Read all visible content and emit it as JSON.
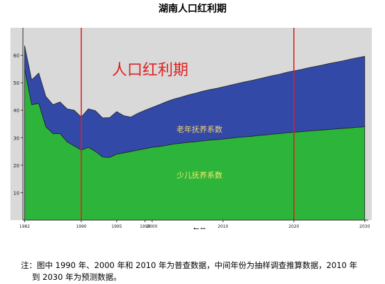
{
  "title": "湖南人口红利期",
  "chart_data": {
    "type": "area",
    "stacked": true,
    "xlabel": "年份",
    "ylabel": "",
    "xlim": [
      1980,
      2031
    ],
    "ylim": [
      0,
      70
    ],
    "yticks": [
      10,
      20,
      30,
      40,
      50,
      60
    ],
    "xtick_labels": [
      {
        "x": 1982,
        "label": "1982"
      },
      {
        "x": 1990,
        "label": "1990"
      },
      {
        "x": 1995,
        "label": "1995"
      },
      {
        "x": 1999,
        "label": "1999"
      },
      {
        "x": 2000,
        "label": "2000"
      },
      {
        "x": 2010,
        "label": "2010"
      },
      {
        "x": 2020,
        "label": "2020"
      },
      {
        "x": 2030,
        "label": "2030"
      }
    ],
    "x": [
      1982,
      1983,
      1984,
      1985,
      1986,
      1987,
      1988,
      1989,
      1990,
      1991,
      1992,
      1993,
      1994,
      1995,
      1996,
      1997,
      1998,
      1999,
      2000,
      2001,
      2002,
      2003,
      2004,
      2005,
      2006,
      2007,
      2008,
      2009,
      2010,
      2011,
      2012,
      2013,
      2014,
      2015,
      2016,
      2017,
      2018,
      2019,
      2020,
      2021,
      2022,
      2023,
      2024,
      2025,
      2026,
      2027,
      2028,
      2029,
      2030
    ],
    "series": [
      {
        "name": "少儿抚养系数",
        "color": "#2db43a",
        "values": [
          55,
          42,
          42.5,
          34,
          31.5,
          31.5,
          28.5,
          27,
          25.5,
          26.5,
          25,
          23,
          22.8,
          24,
          24.5,
          25,
          25.5,
          26,
          26.5,
          26.8,
          27.2,
          27.7,
          28,
          28.3,
          28.5,
          28.8,
          29.1,
          29.3,
          29.5,
          29.8,
          30.1,
          30.3,
          30.5,
          30.8,
          31,
          31.3,
          31.5,
          31.8,
          32,
          32.2,
          32.4,
          32.6,
          32.8,
          33,
          33.2,
          33.4,
          33.6,
          33.8,
          34
        ]
      },
      {
        "name": "老年抚养系数",
        "color": "#3349a8",
        "values": [
          8.5,
          9,
          11,
          11,
          10.5,
          11.5,
          12,
          13,
          12,
          14,
          14.8,
          14.2,
          14.5,
          15.5,
          13.5,
          12.5,
          13.4,
          14,
          14.5,
          15.2,
          15.9,
          16.3,
          16.7,
          17.2,
          17.6,
          18,
          18.3,
          18.6,
          19,
          19.3,
          19.6,
          20,
          20.3,
          20.6,
          21,
          21.3,
          21.6,
          22,
          22.3,
          22.6,
          23,
          23.3,
          23.6,
          24,
          24.3,
          24.6,
          25,
          25.3,
          25.6
        ]
      }
    ],
    "annotations": {
      "dividend": "人口红利期",
      "elderly": "老年抚养系数",
      "child": "少儿抚养系数"
    },
    "reference_lines_x": [
      1990,
      2020
    ],
    "grid": false,
    "legend": "none"
  },
  "note": {
    "line1": "注：图中 1990 年、2000 年和 2010 年为普查数据，中间年份为抽样调查推算数据，2010 年",
    "line2": "到 2030 年为预测数据。"
  },
  "colors": {
    "plot_bg": "#d9d9d9",
    "axis": "#333333",
    "marker": "#e02020",
    "dividend_text": "#e02020",
    "elderly_text": "#f3d36a",
    "child_text": "#f3e96a"
  }
}
